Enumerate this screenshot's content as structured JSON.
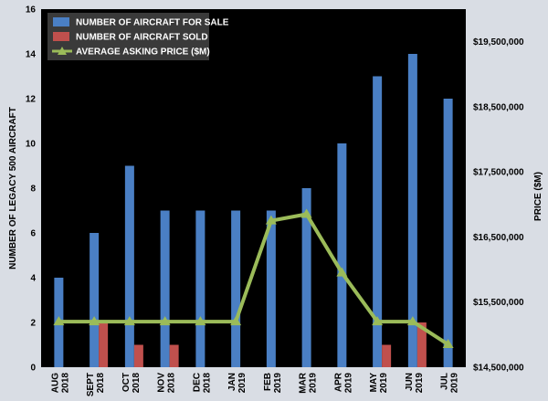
{
  "chart_data": {
    "type": "bar",
    "categories": [
      [
        "AUG",
        "2018"
      ],
      [
        "SEPT",
        "2018"
      ],
      [
        "OCT",
        "2018"
      ],
      [
        "NOV",
        "2018"
      ],
      [
        "DEC",
        "2018"
      ],
      [
        "JAN",
        "2019"
      ],
      [
        "FEB",
        "2019"
      ],
      [
        "MAR",
        "2019"
      ],
      [
        "APR",
        "2019"
      ],
      [
        "MAY",
        "2019"
      ],
      [
        "JUN",
        "2019"
      ],
      [
        "JUL",
        "2019"
      ]
    ],
    "series": [
      {
        "name": "NUMBER OF AIRCRAFT FOR SALE",
        "kind": "bar",
        "axis": "left",
        "color": "#4a7fc4",
        "values": [
          4,
          6,
          9,
          7,
          7,
          7,
          7,
          8,
          10,
          13,
          14,
          12
        ]
      },
      {
        "name": "NUMBER OF AIRCRAFT SOLD",
        "kind": "bar",
        "axis": "left",
        "color": "#c0504d",
        "values": [
          0,
          2,
          1,
          1,
          0,
          0,
          0,
          0,
          0,
          1,
          2,
          0
        ]
      },
      {
        "name": "AVERAGE ASKING PRICE ($M)",
        "kind": "line",
        "axis": "right",
        "color": "#9bbb59",
        "values": [
          15200000,
          15200000,
          15200000,
          15200000,
          15200000,
          15200000,
          16750000,
          16850000,
          15950000,
          15200000,
          15200000,
          14850000
        ]
      }
    ],
    "ylabel": "NUMBER OF LEGACY 500 AIRCRAFT",
    "ylim": [
      0,
      16
    ],
    "yticks": [
      0,
      2,
      4,
      6,
      8,
      10,
      12,
      14,
      16
    ],
    "y2label": "PRICE ($M)",
    "y2lim": [
      14500000,
      20000000
    ],
    "y2ticks": [
      {
        "value": 14500000,
        "label": "$14,500,000"
      },
      {
        "value": 15500000,
        "label": "$15,500,000"
      },
      {
        "value": 16500000,
        "label": "$16,500,000"
      },
      {
        "value": 17500000,
        "label": "$17,500,000"
      },
      {
        "value": 18500000,
        "label": "$18,500,000"
      },
      {
        "value": 19500000,
        "label": "$19,500,000"
      }
    ],
    "legend": "top-left",
    "grid": false,
    "plot_background": "#000000"
  }
}
